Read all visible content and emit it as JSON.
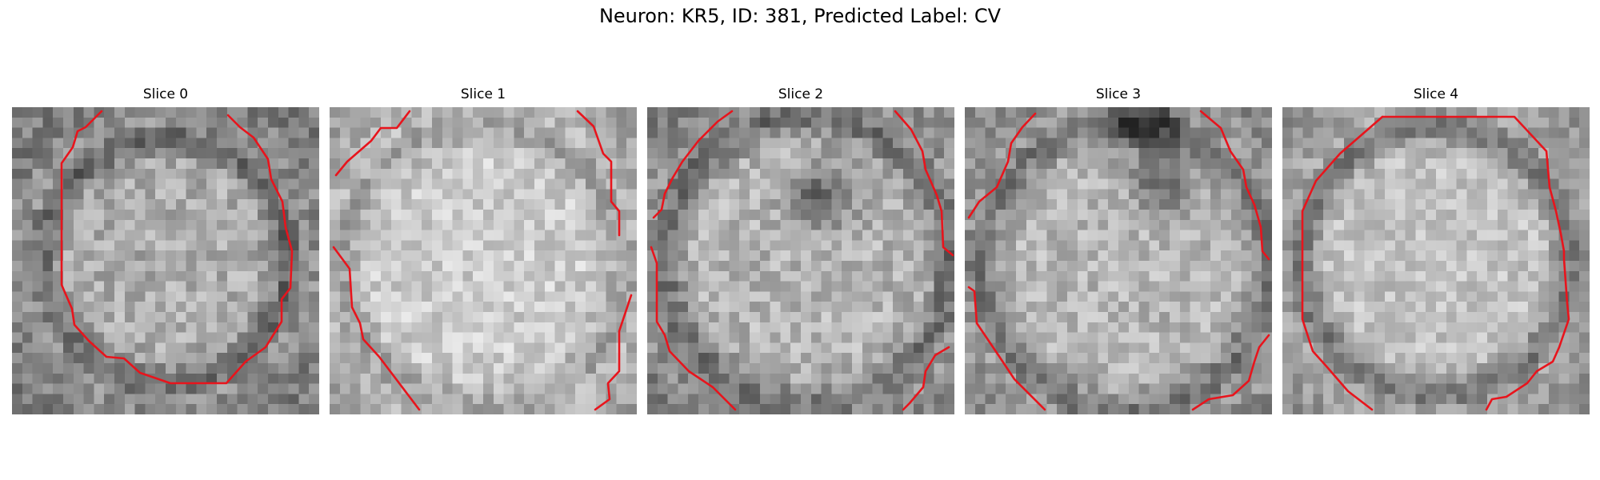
{
  "figure": {
    "title": "Neuron: KR5, ID: 381, Predicted Label: CV"
  },
  "slices": [
    {
      "title": "Slice 0"
    },
    {
      "title": "Slice 1"
    },
    {
      "title": "Slice 2"
    },
    {
      "title": "Slice 3"
    },
    {
      "title": "Slice 4"
    }
  ],
  "colors": {
    "contour": "#e8141c",
    "background": "#ffffff"
  }
}
